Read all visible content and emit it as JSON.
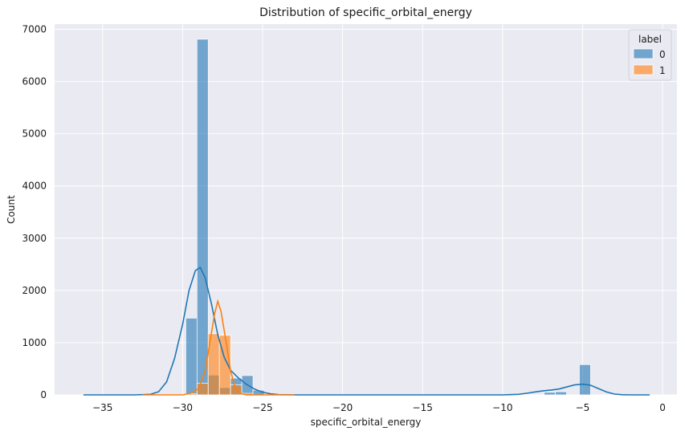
{
  "chart_data": {
    "type": "bar",
    "title": "Distribution of specific_orbital_energy",
    "xlabel": "specific_orbital_energy",
    "ylabel": "Count",
    "xlim": [
      -38,
      0.9
    ],
    "ylim": [
      0,
      7100
    ],
    "xticks": [
      -35,
      -30,
      -25,
      -20,
      -15,
      -10,
      -5,
      0
    ],
    "xtick_labels": [
      "−35",
      "−30",
      "−25",
      "−20",
      "−15",
      "−10",
      "−5",
      "0"
    ],
    "yticks": [
      0,
      1000,
      2000,
      3000,
      4000,
      5000,
      6000,
      7000
    ],
    "ytick_labels": [
      "0",
      "1000",
      "2000",
      "3000",
      "4000",
      "5000",
      "6000",
      "7000"
    ],
    "grid": true,
    "bin_width": 0.7,
    "legend": {
      "title": "label",
      "position": "top-right",
      "entries": [
        "0",
        "1"
      ]
    },
    "series": [
      {
        "name": "0",
        "color": "#1f77b4",
        "bins": [
          {
            "x0": -29.8,
            "count": 1470
          },
          {
            "x0": -29.1,
            "count": 6810
          },
          {
            "x0": -28.4,
            "count": 380
          },
          {
            "x0": -27.7,
            "count": 140
          },
          {
            "x0": -27.0,
            "count": 320
          },
          {
            "x0": -26.3,
            "count": 370
          },
          {
            "x0": -25.6,
            "count": 90
          },
          {
            "x0": -7.4,
            "count": 50
          },
          {
            "x0": -6.7,
            "count": 60
          },
          {
            "x0": -5.2,
            "count": 580
          }
        ],
        "kde": [
          [
            -36.2,
            0
          ],
          [
            -33,
            0
          ],
          [
            -32,
            10
          ],
          [
            -31.5,
            60
          ],
          [
            -31,
            250
          ],
          [
            -30.5,
            700
          ],
          [
            -30,
            1350
          ],
          [
            -29.6,
            2000
          ],
          [
            -29.2,
            2380
          ],
          [
            -28.9,
            2440
          ],
          [
            -28.6,
            2250
          ],
          [
            -28.2,
            1750
          ],
          [
            -27.8,
            1150
          ],
          [
            -27.4,
            720
          ],
          [
            -27,
            470
          ],
          [
            -26.5,
            320
          ],
          [
            -26,
            200
          ],
          [
            -25.5,
            110
          ],
          [
            -25,
            50
          ],
          [
            -24.5,
            20
          ],
          [
            -24,
            5
          ],
          [
            -23,
            0
          ],
          [
            -10,
            0
          ],
          [
            -9,
            10
          ],
          [
            -8.5,
            30
          ],
          [
            -8,
            55
          ],
          [
            -7.5,
            75
          ],
          [
            -7,
            90
          ],
          [
            -6.5,
            110
          ],
          [
            -6,
            150
          ],
          [
            -5.5,
            190
          ],
          [
            -5,
            205
          ],
          [
            -4.5,
            185
          ],
          [
            -4,
            120
          ],
          [
            -3.5,
            55
          ],
          [
            -3,
            15
          ],
          [
            -2.5,
            3
          ],
          [
            -2,
            0
          ],
          [
            -0.8,
            0
          ]
        ]
      },
      {
        "name": "1",
        "color": "#ff7f0e",
        "bins": [
          {
            "x0": -29.8,
            "count": 20
          },
          {
            "x0": -29.1,
            "count": 220
          },
          {
            "x0": -28.4,
            "count": 1170
          },
          {
            "x0": -27.7,
            "count": 1140
          },
          {
            "x0": -27.0,
            "count": 190
          },
          {
            "x0": -26.3,
            "count": 30
          }
        ],
        "kde": [
          [
            -32.5,
            0
          ],
          [
            -30,
            0
          ],
          [
            -29.5,
            30
          ],
          [
            -29,
            120
          ],
          [
            -28.6,
            450
          ],
          [
            -28.3,
            1000
          ],
          [
            -28.0,
            1550
          ],
          [
            -27.8,
            1790
          ],
          [
            -27.6,
            1600
          ],
          [
            -27.3,
            1050
          ],
          [
            -27.0,
            450
          ],
          [
            -26.7,
            130
          ],
          [
            -26.3,
            20
          ],
          [
            -26,
            0
          ],
          [
            -23,
            0
          ]
        ]
      }
    ]
  }
}
